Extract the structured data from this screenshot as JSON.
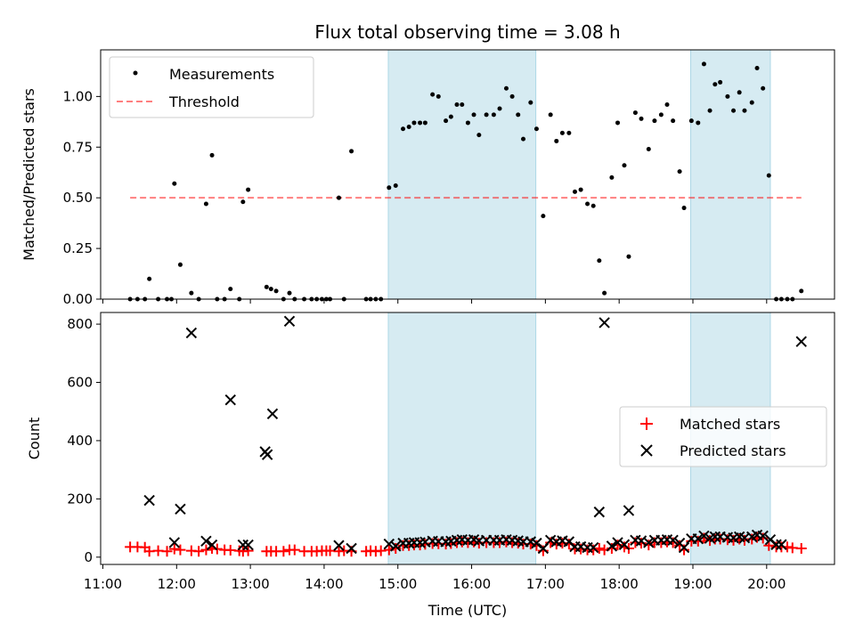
{
  "chart_data": {
    "type": "scatter",
    "title": "Flux total observing time = 3.08 h",
    "colors": {
      "shade": "#add8e6",
      "measurement": "#000000",
      "threshold": "#ff0000",
      "matched": "#ff0000",
      "predicted": "#000000"
    },
    "shaded_intervals_hours": [
      [
        14.87,
        16.87
      ],
      [
        18.97,
        20.05
      ]
    ],
    "top": {
      "ylabel": "Matched/Predicted stars",
      "ylim": [
        0,
        1.23
      ],
      "yticks": [
        0,
        0.25,
        0.5,
        0.75,
        1.0
      ],
      "yticklabels": [
        "0.00",
        "0.25",
        "0.50",
        "0.75",
        "1.00"
      ],
      "legend": [
        "Measurements",
        "Threshold"
      ],
      "threshold": {
        "value": 0.5,
        "x_range_hours": [
          11.37,
          20.47
        ]
      },
      "measurements": [
        [
          11.37,
          0
        ],
        [
          11.47,
          0
        ],
        [
          11.57,
          0
        ],
        [
          11.63,
          0.1
        ],
        [
          11.75,
          0
        ],
        [
          11.87,
          0
        ],
        [
          11.93,
          0
        ],
        [
          11.97,
          0.57
        ],
        [
          12.05,
          0.17
        ],
        [
          12.2,
          0.03
        ],
        [
          12.3,
          0
        ],
        [
          12.4,
          0.47
        ],
        [
          12.48,
          0.71
        ],
        [
          12.55,
          0
        ],
        [
          12.65,
          0
        ],
        [
          12.73,
          0.05
        ],
        [
          12.85,
          0
        ],
        [
          12.9,
          0.48
        ],
        [
          12.97,
          0.54
        ],
        [
          13.22,
          0.06
        ],
        [
          13.28,
          0.05
        ],
        [
          13.35,
          0.04
        ],
        [
          13.45,
          0
        ],
        [
          13.53,
          0.03
        ],
        [
          13.6,
          0
        ],
        [
          13.73,
          0
        ],
        [
          13.83,
          0
        ],
        [
          13.9,
          0
        ],
        [
          13.97,
          0
        ],
        [
          14.03,
          0
        ],
        [
          14.08,
          0
        ],
        [
          14.2,
          0.5
        ],
        [
          14.27,
          0
        ],
        [
          14.37,
          0.73
        ],
        [
          14.57,
          0
        ],
        [
          14.63,
          0
        ],
        [
          14.7,
          0
        ],
        [
          14.77,
          0
        ],
        [
          14.88,
          0.55
        ],
        [
          14.97,
          0.56
        ],
        [
          15.07,
          0.84
        ],
        [
          15.15,
          0.85
        ],
        [
          15.22,
          0.87
        ],
        [
          15.3,
          0.87
        ],
        [
          15.37,
          0.87
        ],
        [
          15.47,
          1.01
        ],
        [
          15.55,
          1.0
        ],
        [
          15.65,
          0.88
        ],
        [
          15.72,
          0.9
        ],
        [
          15.8,
          0.96
        ],
        [
          15.87,
          0.96
        ],
        [
          15.95,
          0.87
        ],
        [
          16.03,
          0.91
        ],
        [
          16.1,
          0.81
        ],
        [
          16.2,
          0.91
        ],
        [
          16.3,
          0.91
        ],
        [
          16.38,
          0.94
        ],
        [
          16.47,
          1.04
        ],
        [
          16.55,
          1.0
        ],
        [
          16.63,
          0.91
        ],
        [
          16.7,
          0.79
        ],
        [
          16.8,
          0.97
        ],
        [
          16.88,
          0.84
        ],
        [
          16.97,
          0.41
        ],
        [
          17.07,
          0.91
        ],
        [
          17.15,
          0.78
        ],
        [
          17.23,
          0.82
        ],
        [
          17.32,
          0.82
        ],
        [
          17.4,
          0.53
        ],
        [
          17.48,
          0.54
        ],
        [
          17.57,
          0.47
        ],
        [
          17.65,
          0.46
        ],
        [
          17.73,
          0.19
        ],
        [
          17.8,
          0.03
        ],
        [
          17.9,
          0.6
        ],
        [
          17.98,
          0.87
        ],
        [
          18.07,
          0.66
        ],
        [
          18.13,
          0.21
        ],
        [
          18.22,
          0.92
        ],
        [
          18.3,
          0.89
        ],
        [
          18.4,
          0.74
        ],
        [
          18.48,
          0.88
        ],
        [
          18.57,
          0.91
        ],
        [
          18.65,
          0.96
        ],
        [
          18.73,
          0.88
        ],
        [
          18.82,
          0.63
        ],
        [
          18.88,
          0.45
        ],
        [
          18.98,
          0.88
        ],
        [
          19.07,
          0.87
        ],
        [
          19.15,
          1.16
        ],
        [
          19.23,
          0.93
        ],
        [
          19.3,
          1.06
        ],
        [
          19.37,
          1.07
        ],
        [
          19.47,
          1.0
        ],
        [
          19.55,
          0.93
        ],
        [
          19.63,
          1.02
        ],
        [
          19.7,
          0.93
        ],
        [
          19.8,
          0.97
        ],
        [
          19.87,
          1.14
        ],
        [
          19.95,
          1.04
        ],
        [
          20.03,
          0.61
        ],
        [
          20.13,
          0
        ],
        [
          20.2,
          0
        ],
        [
          20.28,
          0
        ],
        [
          20.35,
          0
        ],
        [
          20.47,
          0.04
        ]
      ]
    },
    "bottom": {
      "ylabel": "Count",
      "xlabel": "Time (UTC)",
      "xlim_hours": [
        10.97,
        20.92
      ],
      "xticks_hours": [
        11,
        12,
        13,
        14,
        15,
        16,
        17,
        18,
        19,
        20
      ],
      "xticklabels": [
        "11:00",
        "12:00",
        "13:00",
        "14:00",
        "15:00",
        "16:00",
        "17:00",
        "18:00",
        "19:00",
        "20:00"
      ],
      "ylim": [
        -25,
        840
      ],
      "yticks": [
        0,
        200,
        400,
        600,
        800
      ],
      "yticklabels": [
        "0",
        "200",
        "400",
        "600",
        "800"
      ],
      "legend": [
        "Matched stars",
        "Predicted stars"
      ],
      "predicted_stars": [
        [
          11.63,
          195
        ],
        [
          11.97,
          50
        ],
        [
          12.05,
          165
        ],
        [
          12.2,
          770
        ],
        [
          12.4,
          55
        ],
        [
          12.48,
          42
        ],
        [
          12.73,
          540
        ],
        [
          12.9,
          42
        ],
        [
          12.97,
          42
        ],
        [
          13.2,
          362
        ],
        [
          13.23,
          352
        ],
        [
          13.3,
          492
        ],
        [
          13.53,
          810
        ],
        [
          14.2,
          40
        ],
        [
          14.37,
          30
        ],
        [
          14.88,
          45
        ],
        [
          17.73,
          155
        ],
        [
          17.8,
          805
        ],
        [
          18.13,
          160
        ],
        [
          20.05,
          60
        ],
        [
          20.47,
          740
        ]
      ],
      "matched_stars": [
        [
          11.37,
          35
        ],
        [
          11.47,
          35
        ],
        [
          11.57,
          34
        ],
        [
          11.63,
          20
        ],
        [
          11.75,
          22
        ],
        [
          11.87,
          20
        ],
        [
          11.97,
          28
        ],
        [
          12.05,
          25
        ],
        [
          12.2,
          22
        ],
        [
          12.3,
          20
        ],
        [
          12.4,
          25
        ],
        [
          12.48,
          30
        ],
        [
          12.55,
          28
        ],
        [
          12.65,
          25
        ],
        [
          12.73,
          24
        ],
        [
          12.85,
          22
        ],
        [
          12.9,
          20
        ],
        [
          12.97,
          22
        ],
        [
          13.22,
          20
        ],
        [
          13.28,
          20
        ],
        [
          13.35,
          20
        ],
        [
          13.45,
          20
        ],
        [
          13.53,
          25
        ],
        [
          13.6,
          25
        ],
        [
          13.73,
          20
        ],
        [
          13.83,
          20
        ],
        [
          13.9,
          20
        ],
        [
          13.97,
          22
        ],
        [
          14.03,
          22
        ],
        [
          14.08,
          22
        ],
        [
          14.2,
          20
        ],
        [
          14.27,
          22
        ],
        [
          14.37,
          20
        ],
        [
          14.57,
          20
        ],
        [
          14.63,
          22
        ],
        [
          14.7,
          20
        ],
        [
          14.77,
          22
        ],
        [
          14.88,
          25
        ],
        [
          14.97,
          30
        ],
        [
          15.07,
          40
        ],
        [
          15.15,
          40
        ],
        [
          15.22,
          42
        ],
        [
          15.3,
          42
        ],
        [
          15.37,
          44
        ],
        [
          15.47,
          47
        ],
        [
          15.55,
          46
        ],
        [
          15.65,
          45
        ],
        [
          15.72,
          47
        ],
        [
          15.8,
          50
        ],
        [
          15.87,
          52
        ],
        [
          15.95,
          50
        ],
        [
          16.03,
          52
        ],
        [
          16.1,
          48
        ],
        [
          16.2,
          50
        ],
        [
          16.3,
          50
        ],
        [
          16.38,
          50
        ],
        [
          16.47,
          52
        ],
        [
          16.55,
          50
        ],
        [
          16.63,
          48
        ],
        [
          16.7,
          45
        ],
        [
          16.8,
          45
        ],
        [
          16.88,
          40
        ],
        [
          16.97,
          22
        ],
        [
          17.07,
          50
        ],
        [
          17.15,
          45
        ],
        [
          17.23,
          48
        ],
        [
          17.32,
          45
        ],
        [
          17.4,
          28
        ],
        [
          17.48,
          28
        ],
        [
          17.57,
          25
        ],
        [
          17.65,
          25
        ],
        [
          17.73,
          30
        ],
        [
          17.8,
          25
        ],
        [
          17.9,
          30
        ],
        [
          17.98,
          42
        ],
        [
          18.07,
          35
        ],
        [
          18.13,
          30
        ],
        [
          18.22,
          50
        ],
        [
          18.3,
          48
        ],
        [
          18.4,
          42
        ],
        [
          18.48,
          50
        ],
        [
          18.57,
          50
        ],
        [
          18.65,
          52
        ],
        [
          18.73,
          50
        ],
        [
          18.82,
          40
        ],
        [
          18.88,
          25
        ],
        [
          18.98,
          55
        ],
        [
          19.07,
          55
        ],
        [
          19.15,
          65
        ],
        [
          19.23,
          57
        ],
        [
          19.3,
          62
        ],
        [
          19.37,
          62
        ],
        [
          19.47,
          60
        ],
        [
          19.55,
          58
        ],
        [
          19.63,
          62
        ],
        [
          19.7,
          58
        ],
        [
          19.8,
          62
        ],
        [
          19.87,
          68
        ],
        [
          19.95,
          65
        ],
        [
          20.03,
          40
        ],
        [
          20.13,
          35
        ],
        [
          20.2,
          35
        ],
        [
          20.28,
          35
        ],
        [
          20.35,
          32
        ],
        [
          20.47,
          30
        ]
      ]
    }
  }
}
